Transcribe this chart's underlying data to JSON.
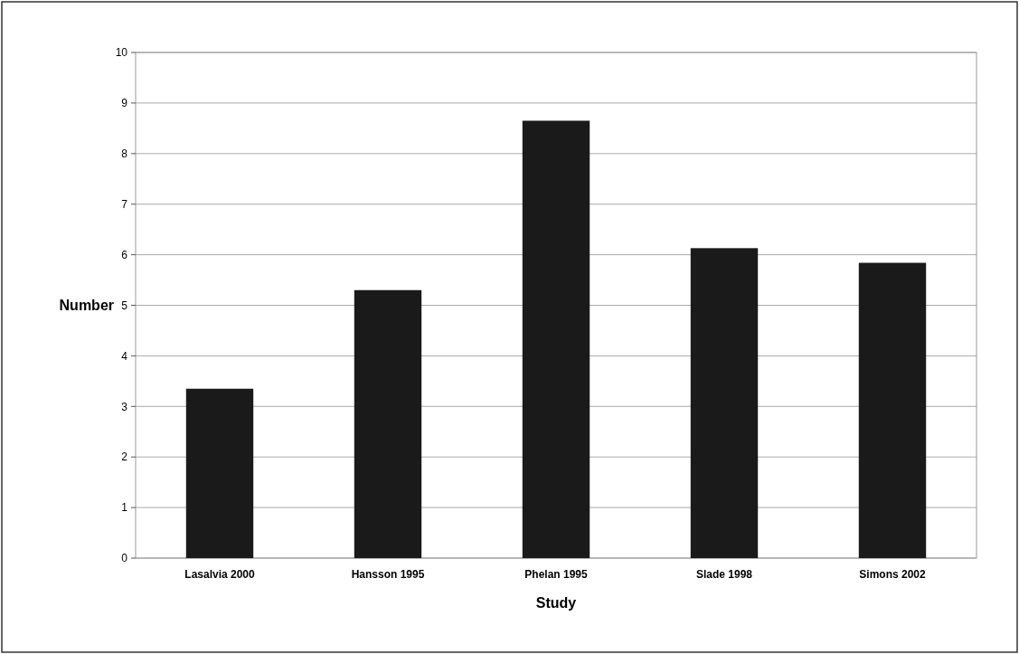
{
  "chart_data": {
    "type": "bar",
    "xlabel": "Study",
    "ylabel": "Number",
    "categories": [
      "Lasalvia 2000",
      "Hansson 1995",
      "Phelan 1995",
      "Slade 1998",
      "Simons 2002"
    ],
    "values": [
      3.35,
      5.3,
      8.65,
      6.13,
      5.84
    ],
    "color": "#1a1a1a",
    "ylim": [
      0,
      10
    ],
    "yticks": [
      0,
      1,
      2,
      3,
      4,
      5,
      6,
      7,
      8,
      9,
      10
    ],
    "grid": "y"
  }
}
